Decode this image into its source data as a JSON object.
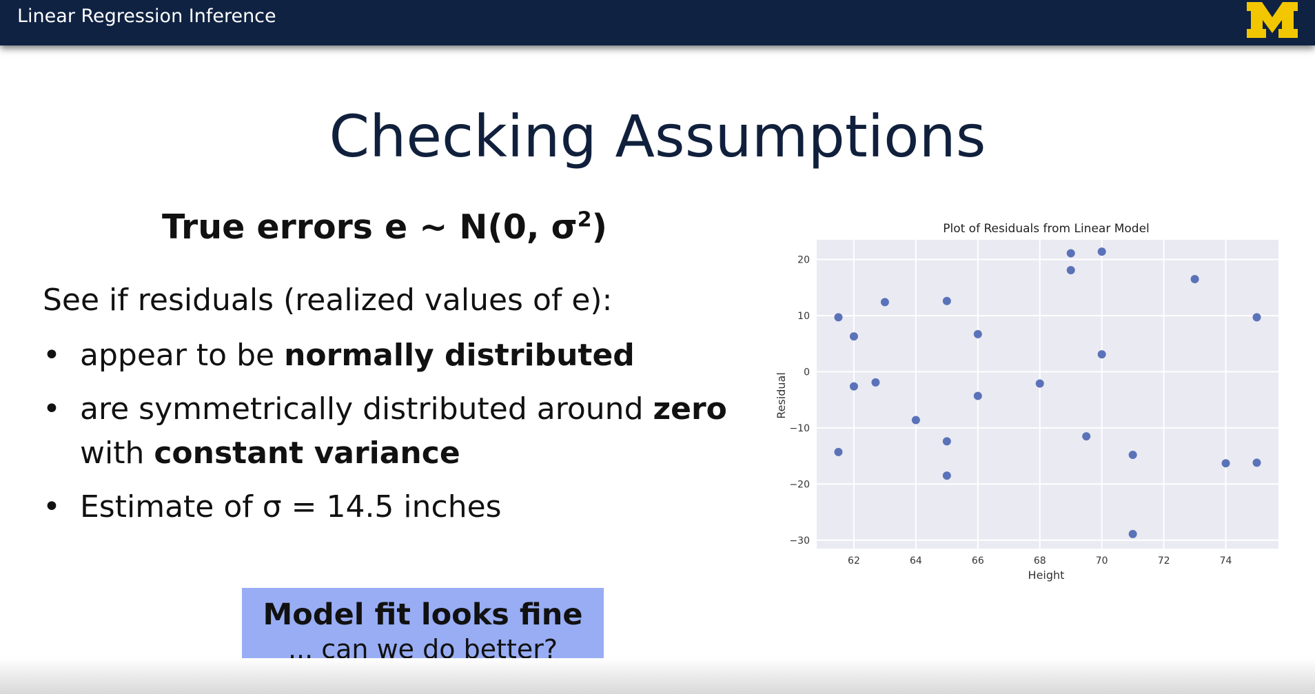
{
  "header": {
    "course_title": "Linear Regression Inference",
    "logo_letter": "M",
    "bar_color": "#0f2242",
    "logo_color": "#f2c700"
  },
  "slide": {
    "title": "Checking Assumptions",
    "subhead_main": "True errors e ~ N(0, σ",
    "subhead_sup": "2",
    "subhead_end": ")",
    "intro": "See if residuals (realized values of e):",
    "bullet_symbol": "•",
    "bullets": [
      {
        "pre": "appear to be ",
        "bold": "normally distributed"
      },
      {
        "pre": "are symmetrically distributed around ",
        "bold": "zero",
        "line2_pre": "with ",
        "line2_bold": "constant variance"
      },
      {
        "pre": "Estimate of σ = 14.5 inches"
      }
    ],
    "callout": {
      "main": "Model fit looks fine",
      "sub": "... can we do better?",
      "color": "#98adf4"
    }
  },
  "chart_data": {
    "type": "scatter",
    "title": "Plot of Residuals from Linear Model",
    "xlabel": "Height",
    "ylabel": "Residual",
    "xlim": [
      60.8,
      75.7
    ],
    "ylim": [
      -31.5,
      23.5
    ],
    "xticks": [
      62,
      64,
      66,
      68,
      70,
      72,
      74
    ],
    "yticks": [
      20,
      10,
      0,
      -10,
      -20,
      -30
    ],
    "grid": true,
    "background": "#eaeaf2",
    "point_color": "#5a72b8",
    "points": [
      {
        "x": 61.5,
        "y": 9.7
      },
      {
        "x": 61.5,
        "y": -14.3
      },
      {
        "x": 62.0,
        "y": 6.3
      },
      {
        "x": 62.0,
        "y": -2.6
      },
      {
        "x": 62.7,
        "y": -1.9
      },
      {
        "x": 63.0,
        "y": 12.4
      },
      {
        "x": 64.0,
        "y": -8.6
      },
      {
        "x": 65.0,
        "y": 12.6
      },
      {
        "x": 65.0,
        "y": -12.4
      },
      {
        "x": 65.0,
        "y": -18.5
      },
      {
        "x": 66.0,
        "y": 6.7
      },
      {
        "x": 66.0,
        "y": -4.3
      },
      {
        "x": 68.0,
        "y": -2.1
      },
      {
        "x": 69.0,
        "y": 21.1
      },
      {
        "x": 69.0,
        "y": 18.1
      },
      {
        "x": 69.5,
        "y": -11.5
      },
      {
        "x": 70.0,
        "y": 21.4
      },
      {
        "x": 70.0,
        "y": 3.1
      },
      {
        "x": 71.0,
        "y": -14.8
      },
      {
        "x": 71.0,
        "y": -28.9
      },
      {
        "x": 73.0,
        "y": 16.5
      },
      {
        "x": 74.0,
        "y": -16.3
      },
      {
        "x": 75.0,
        "y": 9.7
      },
      {
        "x": 75.0,
        "y": -16.2
      }
    ]
  }
}
